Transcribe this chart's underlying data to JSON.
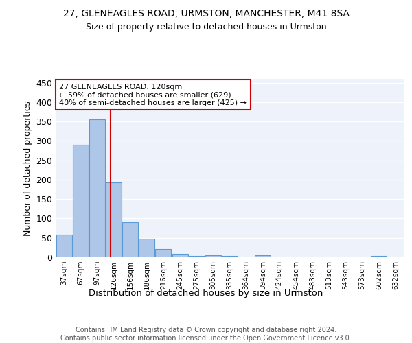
{
  "title1": "27, GLENEAGLES ROAD, URMSTON, MANCHESTER, M41 8SA",
  "title2": "Size of property relative to detached houses in Urmston",
  "xlabel": "Distribution of detached houses by size in Urmston",
  "ylabel": "Number of detached properties",
  "categories": [
    "37sqm",
    "67sqm",
    "97sqm",
    "126sqm",
    "156sqm",
    "186sqm",
    "216sqm",
    "245sqm",
    "275sqm",
    "305sqm",
    "335sqm",
    "364sqm",
    "394sqm",
    "424sqm",
    "454sqm",
    "483sqm",
    "513sqm",
    "543sqm",
    "573sqm",
    "602sqm",
    "632sqm"
  ],
  "values": [
    58,
    290,
    355,
    193,
    90,
    47,
    21,
    9,
    3,
    5,
    4,
    0,
    5,
    0,
    0,
    0,
    0,
    0,
    0,
    4,
    0
  ],
  "bar_color": "#aec6e8",
  "bar_edge_color": "#5b9bd5",
  "background_color": "#eef3fb",
  "grid_color": "#ffffff",
  "vline_color": "#cc0000",
  "annotation_line1": "27 GLENEAGLES ROAD: 120sqm",
  "annotation_line2": "← 59% of detached houses are smaller (629)",
  "annotation_line3": "40% of semi-detached houses are larger (425) →",
  "annotation_box_color": "#ffffff",
  "annotation_box_edge": "#cc0000",
  "yticks": [
    0,
    50,
    100,
    150,
    200,
    250,
    300,
    350,
    400,
    450
  ],
  "ylim": [
    0,
    460
  ],
  "footer": "Contains HM Land Registry data © Crown copyright and database right 2024.\nContains public sector information licensed under the Open Government Licence v3.0."
}
